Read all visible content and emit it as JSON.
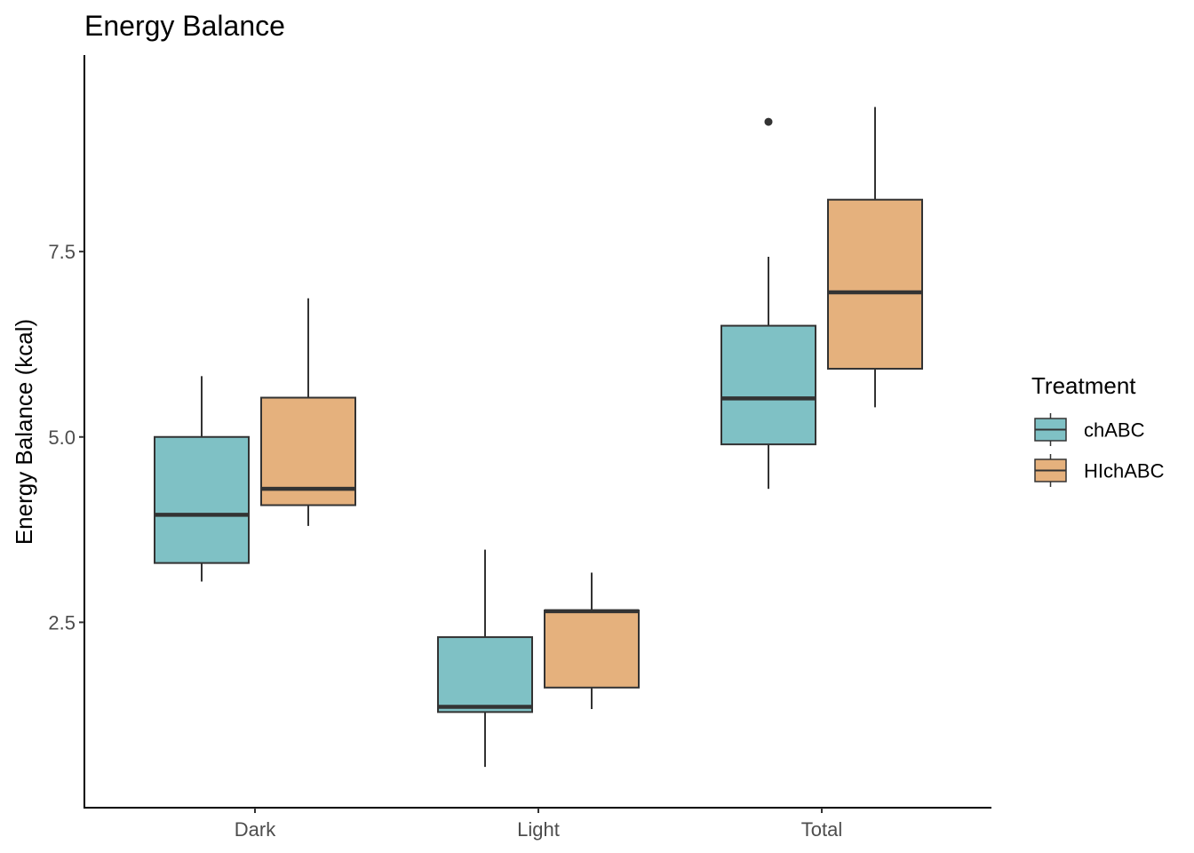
{
  "chart_data": {
    "type": "boxplot",
    "title": "Energy Balance",
    "xlabel": "",
    "ylabel": "Energy Balance (kcal)",
    "categories": [
      "Dark",
      "Light",
      "Total"
    ],
    "yticks": [
      "2.5",
      "5.0",
      "7.5"
    ],
    "ylim": [
      0.0,
      10.15
    ],
    "grid": false,
    "legend": {
      "title": "Treatment",
      "position": "right",
      "entries": [
        "chABC",
        "HIchABC"
      ]
    },
    "colors": {
      "chABC": "#7fc1c5",
      "HIchABC": "#e5b17d",
      "outline": "#333333"
    },
    "series": [
      {
        "name": "chABC",
        "boxes": [
          {
            "category": "Dark",
            "whisker_low": 3.05,
            "q1": 3.3,
            "median": 3.95,
            "q3": 5.0,
            "whisker_high": 5.82,
            "outliers": []
          },
          {
            "category": "Light",
            "whisker_low": 0.55,
            "q1": 1.29,
            "median": 1.36,
            "q3": 2.3,
            "whisker_high": 3.48,
            "outliers": []
          },
          {
            "category": "Total",
            "whisker_low": 4.3,
            "q1": 4.9,
            "median": 5.52,
            "q3": 6.5,
            "whisker_high": 7.43,
            "outliers": [
              9.25
            ]
          }
        ]
      },
      {
        "name": "HIchABC",
        "boxes": [
          {
            "category": "Dark",
            "whisker_low": 3.8,
            "q1": 4.08,
            "median": 4.3,
            "q3": 5.53,
            "whisker_high": 6.87,
            "outliers": []
          },
          {
            "category": "Light",
            "whisker_low": 1.33,
            "q1": 1.62,
            "median": 2.65,
            "q3": 2.66,
            "whisker_high": 3.17,
            "outliers": []
          },
          {
            "category": "Total",
            "whisker_low": 5.4,
            "q1": 5.92,
            "median": 6.95,
            "q3": 8.2,
            "whisker_high": 9.45,
            "outliers": []
          }
        ]
      }
    ]
  }
}
